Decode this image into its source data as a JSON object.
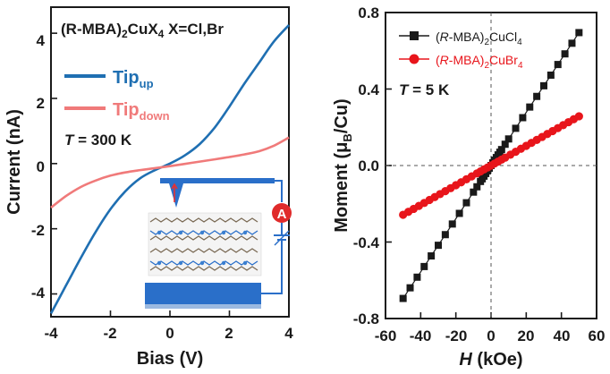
{
  "chart_data": [
    {
      "type": "line",
      "xlabel": "Bias (V)",
      "ylabel": "Current (nA)",
      "xlim": [
        -4,
        4
      ],
      "ylim": [
        -4.7,
        4.8
      ],
      "xticks": [
        "-4",
        "-2",
        "0",
        "2",
        "4"
      ],
      "yticks": [
        "-4",
        "-2",
        "0",
        "2",
        "4"
      ],
      "annotations": {
        "title_prefix": "(R-MBA)",
        "title_sub1": "2",
        "title_mid": "CuX",
        "title_sub2": "4",
        "title_suffix": " X=Cl,Br",
        "temperature_prefix": "T",
        "temperature_value": " = 300 K",
        "circuit_label": "A"
      },
      "series": [
        {
          "name": "Tip",
          "name_sub": "up",
          "color": "#1f6fb2",
          "x": [
            -4,
            -3.5,
            -3,
            -2.5,
            -2,
            -1.5,
            -1,
            -0.5,
            0,
            0.5,
            1,
            1.5,
            2,
            2.5,
            3,
            3.5,
            4
          ],
          "y": [
            -4.6,
            -3.75,
            -2.9,
            -2.1,
            -1.4,
            -0.85,
            -0.45,
            -0.2,
            0.0,
            0.25,
            0.6,
            1.1,
            1.75,
            2.45,
            3.1,
            3.75,
            4.25
          ]
        },
        {
          "name": "Tip",
          "name_sub": "down",
          "color": "#f07a7a",
          "x": [
            -4,
            -3.5,
            -3,
            -2.5,
            -2,
            -1.5,
            -1,
            -0.5,
            0,
            0.5,
            1,
            1.5,
            2,
            2.5,
            3,
            3.5,
            4
          ],
          "y": [
            -1.35,
            -1.0,
            -0.72,
            -0.52,
            -0.37,
            -0.27,
            -0.2,
            -0.14,
            -0.08,
            -0.01,
            0.06,
            0.13,
            0.2,
            0.28,
            0.38,
            0.55,
            0.8
          ]
        }
      ]
    },
    {
      "type": "scatter",
      "xlabel_italic": "H",
      "xlabel_rest": " (kOe)",
      "ylabel": "Moment (μ",
      "ylabel_sub": "B",
      "ylabel_end": "/Cu)",
      "xlim": [
        -60,
        60
      ],
      "ylim": [
        -0.8,
        0.8
      ],
      "xticks": [
        "-60",
        "-40",
        "-20",
        "0",
        "20",
        "40",
        "60"
      ],
      "yticks": [
        "-0.8",
        "-0.4",
        "0.0",
        "0.4",
        "0.8"
      ],
      "annotations": {
        "temperature_prefix": "T",
        "temperature_value": " = 5 K"
      },
      "series": [
        {
          "name": "(R-MBA)2CuCl4",
          "label_pre": "(",
          "label_italic": "R",
          "label_mid": "-MBA)",
          "label_sub1": "2",
          "label_post": "CuCl",
          "label_sub2": "4",
          "color": "#1a1a1a",
          "marker": "square",
          "slope": 0.0139,
          "x": [
            -50,
            -46,
            -42,
            -38,
            -34,
            -30,
            -26,
            -22,
            -18,
            -14,
            -10,
            -8,
            -6,
            -5,
            -4,
            -3,
            -2,
            -1,
            0,
            1,
            2,
            3,
            4,
            5,
            6,
            8,
            10,
            14,
            18,
            22,
            26,
            30,
            34,
            38,
            42,
            46,
            50
          ]
        },
        {
          "name": "(R-MBA)2CuBr4",
          "label_pre": "(",
          "label_italic": "R",
          "label_mid": "-MBA)",
          "label_sub1": "2",
          "label_post": "CuBr",
          "label_sub2": "4",
          "color": "#e8151b",
          "marker": "circle",
          "slope": 0.00515,
          "x": [
            -50,
            -47,
            -44,
            -41,
            -38,
            -35,
            -32,
            -29,
            -26,
            -23,
            -20,
            -17,
            -14,
            -11,
            -8,
            -6,
            -4,
            -2,
            0,
            2,
            4,
            6,
            8,
            11,
            14,
            17,
            20,
            23,
            26,
            29,
            32,
            35,
            38,
            41,
            44,
            47,
            50
          ]
        }
      ]
    }
  ]
}
